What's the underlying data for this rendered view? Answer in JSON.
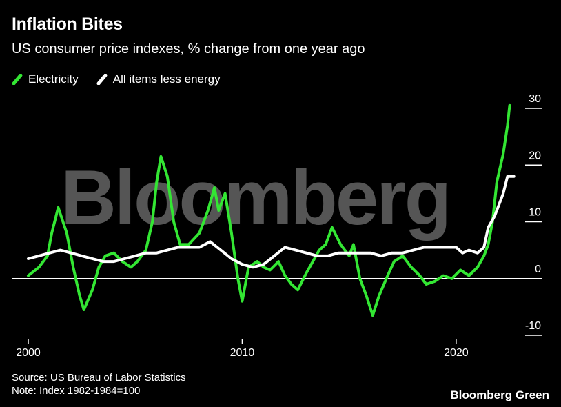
{
  "title": "Inflation Bites",
  "subtitle": "US consumer price indexes, % change from one year ago",
  "legend": [
    {
      "label": "Electricity",
      "color": "#33e633",
      "icon": "diagonal-bar-icon"
    },
    {
      "label": "All items less energy",
      "color": "#ffffff",
      "icon": "diagonal-bar-icon"
    }
  ],
  "watermark": "Bloomberg",
  "footer": {
    "source": "Source: US Bureau of Labor Statistics",
    "note": "Note: Index 1982-1984=100"
  },
  "brand": "Bloomberg Green",
  "colors": {
    "background": "#000000",
    "electricity": "#33e633",
    "core": "#ffffff",
    "watermark": "#555555"
  },
  "chart_data": {
    "type": "line",
    "x_ticks": [
      "2000",
      "2010",
      "2020"
    ],
    "y_ticks": [
      "30",
      "20",
      "10",
      "0",
      "-10"
    ],
    "xlim": [
      2000,
      2023
    ],
    "ylim": [
      -10,
      30
    ],
    "y_axis_position": "right",
    "zero_line": true,
    "series": [
      {
        "name": "Electricity",
        "color": "#33e633",
        "points": [
          [
            2000.0,
            0.5
          ],
          [
            2000.5,
            2.0
          ],
          [
            2000.9,
            4.0
          ],
          [
            2001.1,
            8.0
          ],
          [
            2001.4,
            12.5
          ],
          [
            2001.8,
            8.0
          ],
          [
            2002.1,
            2.0
          ],
          [
            2002.4,
            -3.0
          ],
          [
            2002.6,
            -5.5
          ],
          [
            2003.0,
            -2.0
          ],
          [
            2003.3,
            2.0
          ],
          [
            2003.6,
            4.0
          ],
          [
            2004.0,
            4.5
          ],
          [
            2004.4,
            3.0
          ],
          [
            2004.8,
            2.0
          ],
          [
            2005.1,
            3.0
          ],
          [
            2005.5,
            5.0
          ],
          [
            2005.8,
            10.0
          ],
          [
            2006.0,
            17.0
          ],
          [
            2006.2,
            21.5
          ],
          [
            2006.5,
            18.0
          ],
          [
            2006.8,
            10.0
          ],
          [
            2007.1,
            6.0
          ],
          [
            2007.5,
            6.0
          ],
          [
            2008.0,
            8.0
          ],
          [
            2008.4,
            12.0
          ],
          [
            2008.7,
            16.0
          ],
          [
            2008.9,
            12.0
          ],
          [
            2009.2,
            15.0
          ],
          [
            2009.5,
            8.0
          ],
          [
            2009.8,
            0.0
          ],
          [
            2010.0,
            -4.0
          ],
          [
            2010.3,
            2.0
          ],
          [
            2010.7,
            3.0
          ],
          [
            2011.0,
            2.0
          ],
          [
            2011.3,
            1.5
          ],
          [
            2011.7,
            3.0
          ],
          [
            2012.0,
            0.5
          ],
          [
            2012.3,
            -1.0
          ],
          [
            2012.6,
            -2.0
          ],
          [
            2013.0,
            1.0
          ],
          [
            2013.3,
            3.0
          ],
          [
            2013.6,
            5.0
          ],
          [
            2013.9,
            6.0
          ],
          [
            2014.2,
            9.0
          ],
          [
            2014.6,
            6.0
          ],
          [
            2015.0,
            4.0
          ],
          [
            2015.2,
            6.0
          ],
          [
            2015.5,
            0.0
          ],
          [
            2015.8,
            -3.0
          ],
          [
            2016.1,
            -6.5
          ],
          [
            2016.4,
            -3.0
          ],
          [
            2016.8,
            0.5
          ],
          [
            2017.1,
            3.0
          ],
          [
            2017.5,
            4.0
          ],
          [
            2017.9,
            2.0
          ],
          [
            2018.3,
            0.5
          ],
          [
            2018.6,
            -1.0
          ],
          [
            2019.0,
            -0.5
          ],
          [
            2019.4,
            0.5
          ],
          [
            2019.8,
            0.0
          ],
          [
            2020.2,
            1.5
          ],
          [
            2020.6,
            0.5
          ],
          [
            2021.0,
            2.0
          ],
          [
            2021.3,
            4.0
          ],
          [
            2021.5,
            6.0
          ],
          [
            2021.7,
            10.0
          ],
          [
            2021.9,
            17.0
          ],
          [
            2022.2,
            22.0
          ],
          [
            2022.4,
            27.0
          ],
          [
            2022.5,
            30.5
          ]
        ]
      },
      {
        "name": "All items less energy",
        "color": "#ffffff",
        "points": [
          [
            2000.0,
            3.5
          ],
          [
            2000.5,
            4.0
          ],
          [
            2001.0,
            4.5
          ],
          [
            2001.5,
            5.0
          ],
          [
            2002.0,
            4.5
          ],
          [
            2002.5,
            4.0
          ],
          [
            2003.0,
            3.5
          ],
          [
            2003.5,
            3.0
          ],
          [
            2004.0,
            3.0
          ],
          [
            2004.5,
            3.5
          ],
          [
            2005.0,
            4.0
          ],
          [
            2005.5,
            4.5
          ],
          [
            2006.0,
            4.5
          ],
          [
            2006.5,
            5.0
          ],
          [
            2007.0,
            5.5
          ],
          [
            2007.5,
            5.5
          ],
          [
            2008.0,
            5.5
          ],
          [
            2008.5,
            6.5
          ],
          [
            2009.0,
            5.0
          ],
          [
            2009.5,
            3.5
          ],
          [
            2010.0,
            2.5
          ],
          [
            2010.5,
            2.0
          ],
          [
            2011.0,
            2.5
          ],
          [
            2011.5,
            4.0
          ],
          [
            2012.0,
            5.5
          ],
          [
            2012.5,
            5.0
          ],
          [
            2013.0,
            4.5
          ],
          [
            2013.5,
            4.0
          ],
          [
            2014.0,
            4.0
          ],
          [
            2014.5,
            4.5
          ],
          [
            2015.0,
            4.5
          ],
          [
            2015.5,
            4.5
          ],
          [
            2016.0,
            4.5
          ],
          [
            2016.5,
            4.0
          ],
          [
            2017.0,
            4.5
          ],
          [
            2017.5,
            4.5
          ],
          [
            2018.0,
            5.0
          ],
          [
            2018.5,
            5.5
          ],
          [
            2019.0,
            5.5
          ],
          [
            2019.5,
            5.5
          ],
          [
            2020.0,
            5.5
          ],
          [
            2020.3,
            4.5
          ],
          [
            2020.6,
            5.0
          ],
          [
            2021.0,
            4.5
          ],
          [
            2021.3,
            5.5
          ],
          [
            2021.5,
            9.0
          ],
          [
            2021.8,
            11.0
          ],
          [
            2022.0,
            13.0
          ],
          [
            2022.2,
            15.0
          ],
          [
            2022.4,
            18.0
          ],
          [
            2022.7,
            18.0
          ]
        ]
      }
    ]
  }
}
